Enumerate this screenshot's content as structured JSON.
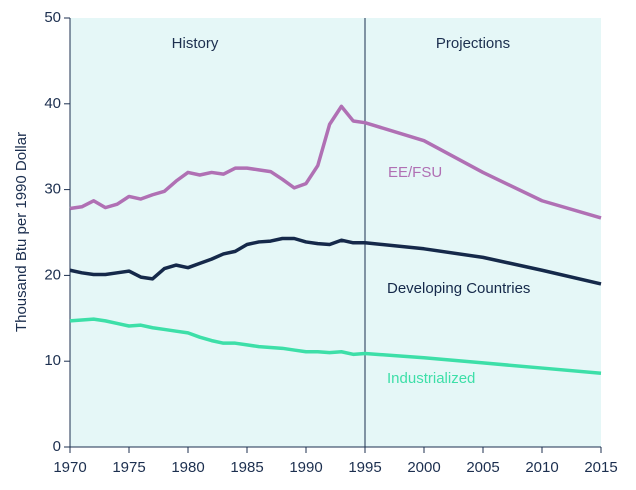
{
  "chart_data": {
    "type": "line",
    "ylabel": "Thousand Btu per 1990 Dollar",
    "annotations": [
      "History",
      "Projections"
    ],
    "divider": 1995,
    "x": [
      1970,
      1971,
      1972,
      1973,
      1974,
      1975,
      1976,
      1977,
      1978,
      1979,
      1980,
      1981,
      1982,
      1983,
      1984,
      1985,
      1986,
      1987,
      1988,
      1989,
      1990,
      1991,
      1992,
      1993,
      1994,
      1995,
      2000,
      2005,
      2010,
      2015
    ],
    "series": [
      {
        "name": "EE/FSU",
        "color": "#b070b4",
        "values": [
          27.8,
          28.0,
          28.7,
          27.9,
          28.3,
          29.2,
          28.9,
          29.4,
          29.8,
          31.0,
          32.0,
          31.7,
          32.0,
          31.8,
          32.5,
          32.5,
          32.3,
          32.1,
          31.2,
          30.2,
          30.7,
          32.8,
          37.6,
          39.7,
          38.0,
          37.8,
          35.7,
          32.0,
          28.7,
          26.7
        ]
      },
      {
        "name": "Developing Countries",
        "color": "#15294a",
        "values": [
          20.6,
          20.3,
          20.1,
          20.1,
          20.3,
          20.5,
          19.8,
          19.6,
          20.8,
          21.2,
          20.9,
          21.4,
          21.9,
          22.5,
          22.8,
          23.6,
          23.9,
          24.0,
          24.3,
          24.3,
          23.9,
          23.7,
          23.6,
          24.1,
          23.8,
          23.8,
          23.1,
          22.1,
          20.6,
          19.0
        ]
      },
      {
        "name": "Industrialized",
        "color": "#3ddfa8",
        "values": [
          14.7,
          14.8,
          14.9,
          14.7,
          14.4,
          14.1,
          14.2,
          13.9,
          13.7,
          13.5,
          13.3,
          12.8,
          12.4,
          12.1,
          12.1,
          11.9,
          11.7,
          11.6,
          11.5,
          11.3,
          11.1,
          11.1,
          11.0,
          11.1,
          10.8,
          10.9,
          10.4,
          9.8,
          9.2,
          8.6
        ]
      }
    ],
    "xlim": [
      1970,
      2015
    ],
    "xticks": [
      1970,
      1975,
      1980,
      1985,
      1990,
      1995,
      2000,
      2005,
      2010,
      2015
    ],
    "ylim": [
      0,
      50
    ],
    "yticks": [
      0,
      10,
      20,
      30,
      40,
      50
    ]
  }
}
